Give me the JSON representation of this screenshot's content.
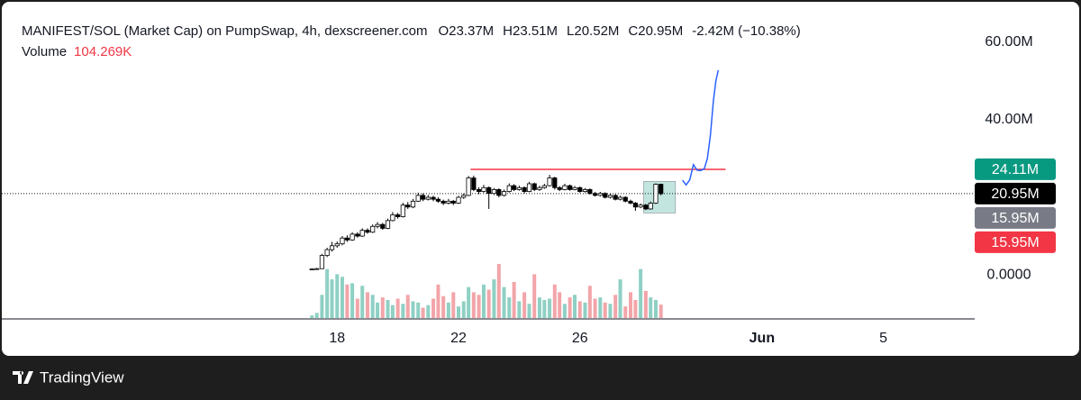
{
  "chart_data": {
    "type": "candlestick",
    "title": "MANIFEST/SOL (Market Cap) on PumpSwap, 4h, dexscreener.com",
    "ohlc_legend": [
      {
        "value": 23.37,
        "label": "O23.37M"
      },
      {
        "value": 23.51,
        "label": "H23.51M"
      },
      {
        "value": 20.52,
        "label": "L20.52M"
      },
      {
        "value": 20.95,
        "label": "C20.95M"
      },
      {
        "value": -2.42,
        "label": "-2.42M (−10.38%)"
      }
    ],
    "volume_title": "Volume",
    "volume_legend": {
      "value": 104.269,
      "label": "104.269K"
    },
    "x": [
      17.17,
      17.33,
      17.5,
      17.67,
      17.83,
      18,
      18.17,
      18.33,
      18.5,
      18.67,
      18.83,
      19,
      19.17,
      19.33,
      19.5,
      19.67,
      19.83,
      20,
      20.17,
      20.33,
      20.5,
      20.67,
      20.83,
      21,
      21.17,
      21.33,
      21.5,
      21.67,
      21.83,
      22,
      22.17,
      22.33,
      22.5,
      22.67,
      22.83,
      23,
      23.17,
      23.33,
      23.5,
      23.67,
      23.83,
      24,
      24.17,
      24.33,
      24.5,
      24.67,
      24.83,
      25,
      25.17,
      25.33,
      25.5,
      25.67,
      25.83,
      26,
      26.17,
      26.33,
      26.5,
      26.67,
      26.83,
      27,
      27.17,
      27.33,
      27.5,
      27.67,
      27.83,
      28,
      28.17,
      28.33,
      28.5,
      28.67
    ],
    "candles": [
      [
        1.4,
        1.7,
        1.3,
        1.5
      ],
      [
        1.5,
        1.8,
        1.4,
        1.6
      ],
      [
        1.6,
        5.4,
        1.5,
        5.0
      ],
      [
        5.0,
        7.0,
        4.6,
        6.5
      ],
      [
        6.5,
        8.5,
        6.0,
        7.5
      ],
      [
        7.5,
        8.6,
        7.0,
        8.0
      ],
      [
        8.0,
        10.0,
        7.6,
        9.5
      ],
      [
        9.5,
        10.2,
        8.5,
        9.0
      ],
      [
        9.0,
        11.0,
        8.8,
        10.5
      ],
      [
        10.5,
        11.0,
        9.6,
        10.0
      ],
      [
        10.0,
        12.0,
        9.8,
        11.5
      ],
      [
        11.5,
        12.0,
        10.6,
        11.0
      ],
      [
        11.0,
        13.0,
        10.8,
        12.5
      ],
      [
        12.5,
        13.6,
        12.0,
        13.0
      ],
      [
        13.0,
        13.4,
        11.6,
        12.0
      ],
      [
        12.0,
        14.5,
        11.8,
        14.0
      ],
      [
        14.0,
        16.2,
        13.8,
        15.5
      ],
      [
        15.5,
        16.0,
        14.5,
        15.0
      ],
      [
        15.0,
        18.6,
        14.8,
        18.0
      ],
      [
        18.0,
        18.8,
        17.0,
        17.5
      ],
      [
        17.5,
        19.6,
        17.2,
        19.0
      ],
      [
        19.0,
        21.2,
        18.8,
        20.5
      ],
      [
        20.5,
        21.0,
        19.0,
        19.5
      ],
      [
        19.5,
        20.6,
        19.2,
        20.0
      ],
      [
        20.0,
        20.4,
        19.0,
        19.5
      ],
      [
        19.5,
        20.0,
        18.6,
        19.0
      ],
      [
        19.0,
        19.4,
        18.0,
        18.5
      ],
      [
        18.5,
        19.6,
        18.2,
        19.0
      ],
      [
        19.0,
        19.3,
        18.0,
        18.5
      ],
      [
        18.5,
        20.4,
        18.3,
        20.0
      ],
      [
        20.0,
        21.0,
        19.6,
        20.5
      ],
      [
        20.5,
        25.5,
        20.3,
        25.0
      ],
      [
        25.0,
        25.6,
        21.6,
        22.0
      ],
      [
        22.0,
        22.6,
        20.8,
        21.5
      ],
      [
        21.5,
        23.2,
        21.2,
        22.5
      ],
      [
        22.5,
        22.8,
        17.0,
        21.0
      ],
      [
        21.0,
        22.4,
        20.6,
        22.0
      ],
      [
        22.0,
        22.3,
        20.0,
        20.5
      ],
      [
        20.5,
        22.0,
        20.2,
        21.5
      ],
      [
        21.5,
        23.6,
        21.2,
        23.0
      ],
      [
        23.0,
        23.4,
        21.6,
        22.0
      ],
      [
        22.0,
        23.0,
        21.7,
        22.5
      ],
      [
        22.5,
        22.8,
        21.0,
        21.5
      ],
      [
        21.5,
        24.0,
        21.3,
        23.5
      ],
      [
        23.5,
        23.8,
        21.6,
        22.0
      ],
      [
        22.0,
        23.0,
        21.7,
        22.5
      ],
      [
        22.5,
        23.5,
        22.2,
        23.0
      ],
      [
        23.0,
        25.8,
        22.8,
        25.0
      ],
      [
        25.0,
        25.3,
        22.0,
        22.5
      ],
      [
        22.5,
        22.9,
        21.6,
        22.0
      ],
      [
        22.0,
        23.5,
        21.8,
        23.0
      ],
      [
        23.0,
        23.3,
        21.7,
        22.0
      ],
      [
        22.0,
        22.9,
        21.8,
        22.5
      ],
      [
        22.5,
        22.8,
        21.2,
        21.5
      ],
      [
        21.5,
        22.4,
        21.2,
        22.0
      ],
      [
        22.0,
        22.3,
        20.7,
        21.0
      ],
      [
        21.0,
        21.4,
        20.2,
        20.5
      ],
      [
        20.5,
        21.4,
        20.2,
        21.0
      ],
      [
        21.0,
        21.3,
        19.7,
        20.0
      ],
      [
        20.0,
        20.9,
        19.7,
        20.5
      ],
      [
        20.5,
        20.8,
        19.2,
        19.5
      ],
      [
        19.5,
        20.4,
        19.2,
        20.0
      ],
      [
        20.0,
        20.3,
        18.7,
        19.0
      ],
      [
        19.0,
        19.4,
        18.2,
        18.5
      ],
      [
        18.5,
        18.8,
        16.5,
        17.5
      ],
      [
        17.5,
        18.4,
        17.2,
        18.0
      ],
      [
        18.0,
        18.3,
        16.7,
        17.0
      ],
      [
        17.0,
        18.9,
        16.8,
        18.5
      ],
      [
        18.5,
        23.6,
        18.3,
        23.37
      ],
      [
        23.37,
        23.51,
        20.52,
        20.95
      ]
    ],
    "volume": [
      20,
      40,
      180,
      380,
      300,
      340,
      320,
      260,
      270,
      150,
      250,
      200,
      180,
      120,
      160,
      140,
      100,
      150,
      110,
      180,
      130,
      120,
      80,
      100,
      150,
      260,
      170,
      120,
      200,
      90,
      130,
      240,
      200,
      180,
      260,
      220,
      300,
      420,
      240,
      160,
      280,
      130,
      200,
      110,
      340,
      160,
      140,
      150,
      260,
      200,
      110,
      160,
      180,
      130,
      120,
      250,
      150,
      160,
      120,
      110,
      180,
      300,
      90,
      200,
      140,
      380,
      210,
      160,
      140,
      104.269
    ],
    "up_color": "#ffffff",
    "down_color": "#000000",
    "volume_up_color": "#8fd0c4",
    "volume_down_color": "#f2a5a9",
    "xlim": [
      6.95,
      38.95
    ],
    "xticks": [
      18,
      22,
      26,
      {
        "value": 32,
        "label": "Jun"
      },
      {
        "value": 36,
        "label": "5"
      }
    ],
    "ylim": [
      -11.6,
      70.9
    ],
    "yticks": [
      {
        "value": 0,
        "label": "0.0000"
      },
      {
        "value": 40,
        "label": "40.00M"
      },
      {
        "value": 60,
        "label": "60.00M"
      }
    ],
    "price_labels": [
      {
        "value": 24.11,
        "label": "24.11M",
        "color": "#089981"
      },
      {
        "value": 20.95,
        "label": "20.95M",
        "color": "#000000"
      },
      {
        "value": 15.95,
        "label": "15.95M",
        "color": "#787b86"
      },
      {
        "value": 15.95,
        "label": "15.95M",
        "color": "#f23645"
      }
    ],
    "horizontal_line": {
      "x": [
        22.4,
        30.8
      ],
      "value": 27.2,
      "color": "#f23645"
    },
    "position_box": {
      "x": [
        28.1,
        29.15
      ],
      "y": [
        15.95,
        24.11
      ],
      "color": "#8fd0c4"
    },
    "projection": {
      "x": [
        29.38,
        29.5,
        29.62,
        29.74,
        29.86,
        29.98,
        30.1,
        30.2,
        30.3,
        30.4,
        30.48,
        30.56
      ],
      "values": [
        24.4,
        23.2,
        24.5,
        28.4,
        27,
        26.9,
        27.4,
        30,
        36,
        45,
        50,
        52.8
      ],
      "color": "#2962ff"
    },
    "footer": "TradingView"
  }
}
